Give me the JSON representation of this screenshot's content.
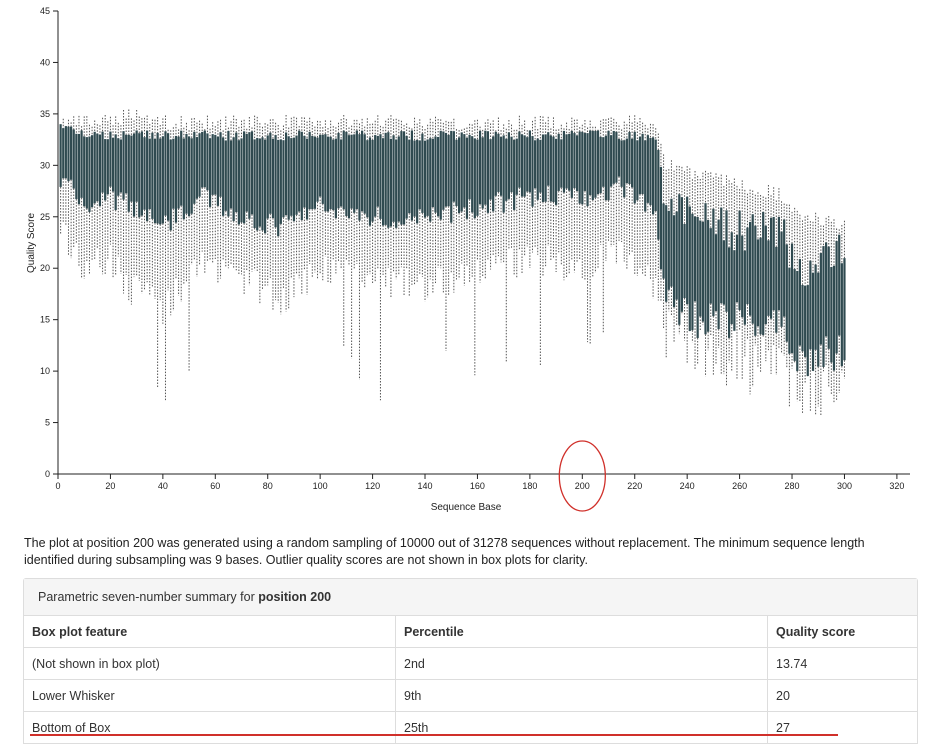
{
  "chart_data": {
    "type": "box",
    "xlabel": "Sequence Base",
    "ylabel": "Quality Score",
    "xlim": [
      0,
      325
    ],
    "ylim": [
      0,
      45
    ],
    "x_ticks": [
      0,
      20,
      40,
      60,
      80,
      100,
      120,
      140,
      160,
      180,
      200,
      220,
      240,
      260,
      280,
      300,
      320
    ],
    "y_ticks": [
      0,
      5,
      10,
      15,
      20,
      25,
      30,
      35,
      40,
      45
    ],
    "highlight_x": 200,
    "box_color": "#2f4a50",
    "whisker_color": "#555555",
    "highlight_color": "#d0302a",
    "profile": [
      {
        "x": 1,
        "q1": 29,
        "q3": 34,
        "lw": 24,
        "uw": 34,
        "median": 33
      },
      {
        "x": 10,
        "q1": 26,
        "q3": 33,
        "lw": 20,
        "uw": 34,
        "median": 32
      },
      {
        "x": 20,
        "q1": 27,
        "q3": 33,
        "lw": 21,
        "uw": 34,
        "median": 32
      },
      {
        "x": 28,
        "q1": 26,
        "q3": 33,
        "lw": 18,
        "uw": 35,
        "median": 32
      },
      {
        "x": 40,
        "q1": 24,
        "q3": 33,
        "lw": 16,
        "uw": 34,
        "median": 31
      },
      {
        "x": 55,
        "q1": 27,
        "q3": 33,
        "lw": 20,
        "uw": 34,
        "median": 32
      },
      {
        "x": 70,
        "q1": 25,
        "q3": 33,
        "lw": 19,
        "uw": 34,
        "median": 32
      },
      {
        "x": 85,
        "q1": 24,
        "q3": 33,
        "lw": 17,
        "uw": 34,
        "median": 32
      },
      {
        "x": 100,
        "q1": 26,
        "q3": 33,
        "lw": 20,
        "uw": 34,
        "median": 32
      },
      {
        "x": 120,
        "q1": 25,
        "q3": 33,
        "lw": 19,
        "uw": 34,
        "median": 32
      },
      {
        "x": 140,
        "q1": 25,
        "q3": 33,
        "lw": 18,
        "uw": 34,
        "median": 32
      },
      {
        "x": 160,
        "q1": 26,
        "q3": 33,
        "lw": 20,
        "uw": 34,
        "median": 32
      },
      {
        "x": 180,
        "q1": 27,
        "q3": 33,
        "lw": 21,
        "uw": 34,
        "median": 32
      },
      {
        "x": 200,
        "q1": 27,
        "q3": 33,
        "lw": 20,
        "uw": 34,
        "median": 32
      },
      {
        "x": 215,
        "q1": 28,
        "q3": 33,
        "lw": 22,
        "uw": 34,
        "median": 32
      },
      {
        "x": 228,
        "q1": 25,
        "q3": 33,
        "lw": 18,
        "uw": 34,
        "median": 31
      },
      {
        "x": 232,
        "q1": 17,
        "q3": 27,
        "lw": 13,
        "uw": 30,
        "median": 22
      },
      {
        "x": 245,
        "q1": 15,
        "q3": 25,
        "lw": 12,
        "uw": 29,
        "median": 20
      },
      {
        "x": 260,
        "q1": 15,
        "q3": 24,
        "lw": 11,
        "uw": 28,
        "median": 19
      },
      {
        "x": 275,
        "q1": 14,
        "q3": 24,
        "lw": 10,
        "uw": 27,
        "median": 18
      },
      {
        "x": 285,
        "q1": 11,
        "q3": 20,
        "lw": 8,
        "uw": 25,
        "median": 15
      },
      {
        "x": 300,
        "q1": 12,
        "q3": 22,
        "lw": 9,
        "uw": 24,
        "median": 17
      }
    ]
  },
  "caption": "The plot at position 200 was generated using a random sampling of 10000 out of 31278 sequences without replacement. The minimum sequence length identified during subsampling was 9 bases. Outlier quality scores are not shown in box plots for clarity.",
  "summary": {
    "heading_prefix": "Parametric seven-number summary for ",
    "heading_bold": "position 200",
    "columns": [
      "Box plot feature",
      "Percentile",
      "Quality score"
    ],
    "rows": [
      {
        "feature": "(Not shown in box plot)",
        "percentile": "2nd",
        "score": "13.74"
      },
      {
        "feature": "Lower Whisker",
        "percentile": "9th",
        "score": "20"
      },
      {
        "feature": "Bottom of Box",
        "percentile": "25th",
        "score": "27"
      }
    ]
  }
}
